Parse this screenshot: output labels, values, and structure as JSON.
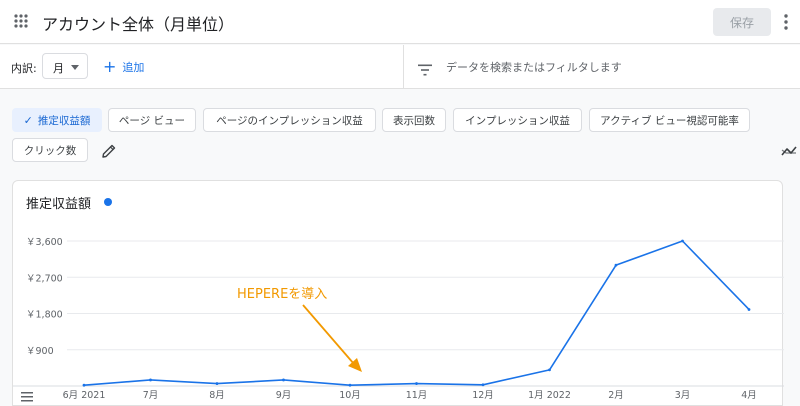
{
  "header": {
    "title": "アカウント全体（月単位）",
    "save_label": "保存"
  },
  "breakdown": {
    "label": "内訳:",
    "period": "月",
    "add_label": "追加"
  },
  "filter": {
    "placeholder": "データを検索またはフィルタします"
  },
  "metrics": {
    "chips": [
      {
        "label": "推定収益額",
        "selected": true
      },
      {
        "label": "ページ ビュー",
        "selected": false
      },
      {
        "label": "ページのインプレッション収益",
        "selected": false
      },
      {
        "label": "表示回数",
        "selected": false
      },
      {
        "label": "インプレッション収益",
        "selected": false
      },
      {
        "label": "アクティブ ビュー視認可能率",
        "selected": false
      },
      {
        "label": "クリック数",
        "selected": false
      }
    ]
  },
  "chart": {
    "title": "推定収益額",
    "series_color": "#1a73e8",
    "annotation": "HEPEREを導入",
    "annotation_color": "#f29900"
  },
  "chart_data": {
    "type": "line",
    "categories": [
      "6月 2021",
      "7月",
      "8月",
      "9月",
      "10月",
      "11月",
      "12月",
      "1月 2022",
      "2月",
      "3月",
      "4月"
    ],
    "series": [
      {
        "values": [
          20,
          150,
          60,
          150,
          20,
          60,
          30,
          400,
          3000,
          3600,
          1900
        ]
      }
    ],
    "x": [
      "2021-06",
      "2021-07",
      "2021-08",
      "2021-09",
      "2021-10",
      "2021-11",
      "2021-12",
      "2022-01",
      "2022-02",
      "2022-03",
      "2022-04"
    ],
    "yticks": [
      "￥900",
      "￥1,800",
      "￥2,700",
      "￥3,600"
    ],
    "ytick_values": [
      900,
      1800,
      2700,
      3600
    ],
    "ylim": [
      0,
      3600
    ],
    "grid": true
  }
}
